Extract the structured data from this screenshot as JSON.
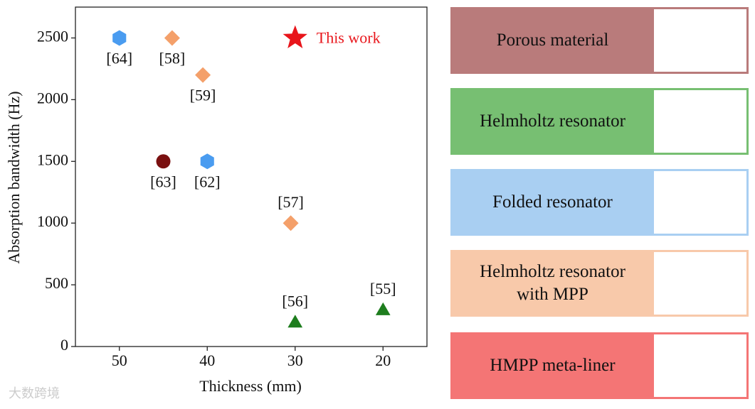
{
  "chart_data": {
    "type": "scatter",
    "x_label": "Thickness (mm)",
    "y_label": "Absorption bandwidth (Hz)",
    "xlim": [
      55,
      15
    ],
    "xticks": [
      50,
      40,
      30,
      20
    ],
    "ylim": [
      0,
      2750
    ],
    "yticks": [
      0,
      500,
      1000,
      1500,
      2000,
      2500
    ],
    "series": [
      {
        "name": "Porous material",
        "color": "#7a1010",
        "box_color": "#b97b7b",
        "marker": "circle",
        "x": [
          45
        ],
        "values": [
          1500
        ],
        "point_labels": [
          "[63]"
        ]
      },
      {
        "name": "Helmholtz resonator",
        "color": "#1e7d1e",
        "box_color": "#77bf72",
        "marker": "triangle",
        "x": [
          30,
          20
        ],
        "values": [
          200,
          300
        ],
        "point_labels": [
          "[56]",
          "[55]"
        ]
      },
      {
        "name": "Folded resonator",
        "color": "#4a9cf0",
        "box_color": "#a9cff2",
        "marker": "hexagon",
        "x": [
          50,
          40
        ],
        "values": [
          2500,
          1500
        ],
        "point_labels": [
          "[64]",
          "[62]"
        ]
      },
      {
        "name": "Helmholtz resonator with MPP",
        "color": "#f4a06a",
        "box_color": "#f8c9aa",
        "marker": "diamond",
        "x": [
          44,
          40.5,
          30.5
        ],
        "values": [
          2500,
          2200,
          1000
        ],
        "point_labels": [
          "[58]",
          "[59]",
          "[57]"
        ]
      },
      {
        "name": "HMPP meta-liner",
        "color": "#e8151b",
        "box_color": "#f47575",
        "marker": "star",
        "x": [
          30
        ],
        "values": [
          2500
        ],
        "point_labels": [
          "This work"
        ]
      }
    ],
    "watermark": "大数跨境"
  }
}
